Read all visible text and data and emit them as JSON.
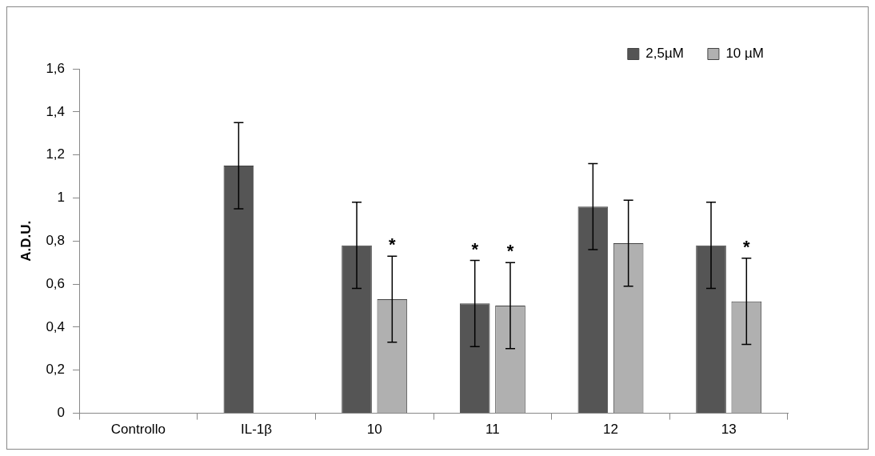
{
  "chart_data": {
    "type": "bar",
    "ylabel": "A.D.U.",
    "categories": [
      "Controllo",
      "IL-1β",
      "10",
      "11",
      "12",
      "13"
    ],
    "series": [
      {
        "name": "2,5µM",
        "color": "#555555",
        "values": [
          null,
          1.15,
          0.78,
          0.51,
          0.96,
          0.78
        ],
        "errors": [
          null,
          0.2,
          0.2,
          0.2,
          0.2,
          0.2
        ],
        "value_labels": [
          null,
          null,
          null,
          "*",
          null,
          null
        ]
      },
      {
        "name": "10 µM",
        "color": "#b0b0b0",
        "values": [
          null,
          null,
          0.53,
          0.5,
          0.79,
          0.52
        ],
        "errors": [
          null,
          null,
          0.2,
          0.2,
          0.2,
          0.2
        ],
        "value_labels": [
          null,
          null,
          "*",
          "*",
          null,
          "*"
        ]
      }
    ],
    "ylim": [
      0,
      1.6
    ],
    "yticks": [
      0,
      {
        "value": 0.2,
        "label": "0,2"
      },
      {
        "value": 0.4,
        "label": "0,4"
      },
      {
        "value": 0.6,
        "label": "0,6"
      },
      {
        "value": 0.8,
        "label": "0,8"
      },
      1,
      {
        "value": 1.2,
        "label": "1,2"
      },
      {
        "value": 1.4,
        "label": "1,4"
      },
      {
        "value": 1.6,
        "label": "1,6"
      }
    ],
    "grid": false,
    "legend": "top right"
  }
}
